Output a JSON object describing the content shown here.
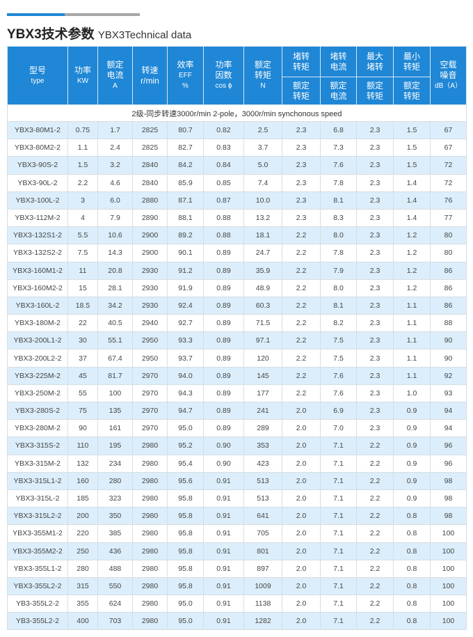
{
  "title": {
    "cn": "YBX3技术参数",
    "en": "YBX3Technical data"
  },
  "header": {
    "type": [
      "型号",
      "type"
    ],
    "power": [
      "功率",
      "KW"
    ],
    "current": [
      "额定",
      "电流",
      "A"
    ],
    "speed": [
      "转速",
      "r/min"
    ],
    "eff": [
      "效率",
      "EFF",
      "%"
    ],
    "pf": [
      "功率",
      "因数",
      "cos ϕ"
    ],
    "torque": [
      "额定",
      "转矩",
      "N"
    ],
    "lrt": [
      "堵转",
      "转矩"
    ],
    "lrc": [
      "堵转",
      "电流"
    ],
    "maxt": [
      "最大",
      "堵转"
    ],
    "mint": [
      "最小",
      "转矩"
    ],
    "lrt2": [
      "额定",
      "转矩"
    ],
    "lrc2": [
      "额定",
      "电流"
    ],
    "maxt2": [
      "额定",
      "转矩"
    ],
    "mint2": [
      "额定",
      "转矩"
    ],
    "noise": [
      "空载",
      "噪音",
      "dB（A）"
    ]
  },
  "subtitle": "2级-同步转速3000r/min 2-pole，3000r/min synchonous speed",
  "rows": [
    [
      "YBX3-80M1-2",
      "0.75",
      "1.7",
      "2825",
      "80.7",
      "0.82",
      "2.5",
      "2.3",
      "6.8",
      "2.3",
      "1.5",
      "67"
    ],
    [
      "YBX3-80M2-2",
      "1.1",
      "2.4",
      "2825",
      "82.7",
      "0.83",
      "3.7",
      "2.3",
      "7.3",
      "2.3",
      "1.5",
      "67"
    ],
    [
      "YBX3-90S-2",
      "1.5",
      "3.2",
      "2840",
      "84.2",
      "0.84",
      "5.0",
      "2.3",
      "7.6",
      "2.3",
      "1.5",
      "72"
    ],
    [
      "YBX3-90L-2",
      "2.2",
      "4.6",
      "2840",
      "85.9",
      "0.85",
      "7.4",
      "2.3",
      "7.8",
      "2.3",
      "1.4",
      "72"
    ],
    [
      "YBX3-100L-2",
      "3",
      "6.0",
      "2880",
      "87.1",
      "0.87",
      "10.0",
      "2.3",
      "8.1",
      "2.3",
      "1.4",
      "76"
    ],
    [
      "YBX3-112M-2",
      "4",
      "7.9",
      "2890",
      "88.1",
      "0.88",
      "13.2",
      "2.3",
      "8.3",
      "2.3",
      "1.4",
      "77"
    ],
    [
      "YBX3-132S1-2",
      "5.5",
      "10.6",
      "2900",
      "89.2",
      "0.88",
      "18.1",
      "2.2",
      "8.0",
      "2.3",
      "1.2",
      "80"
    ],
    [
      "YBX3-132S2-2",
      "7.5",
      "14.3",
      "2900",
      "90.1",
      "0.89",
      "24.7",
      "2.2",
      "7.8",
      "2.3",
      "1.2",
      "80"
    ],
    [
      "YBX3-160M1-2",
      "11",
      "20.8",
      "2930",
      "91.2",
      "0.89",
      "35.9",
      "2.2",
      "7.9",
      "2.3",
      "1.2",
      "86"
    ],
    [
      "YBX3-160M2-2",
      "15",
      "28.1",
      "2930",
      "91.9",
      "0.89",
      "48.9",
      "2.2",
      "8.0",
      "2.3",
      "1.2",
      "86"
    ],
    [
      "YBX3-160L-2",
      "18.5",
      "34.2",
      "2930",
      "92.4",
      "0.89",
      "60.3",
      "2.2",
      "8.1",
      "2.3",
      "1.1",
      "86"
    ],
    [
      "YBX3-180M-2",
      "22",
      "40.5",
      "2940",
      "92.7",
      "0.89",
      "71.5",
      "2.2",
      "8.2",
      "2.3",
      "1.1",
      "88"
    ],
    [
      "YBX3-200L1-2",
      "30",
      "55.1",
      "2950",
      "93.3",
      "0.89",
      "97.1",
      "2.2",
      "7.5",
      "2.3",
      "1.1",
      "90"
    ],
    [
      "YBX3-200L2-2",
      "37",
      "67.4",
      "2950",
      "93.7",
      "0.89",
      "120",
      "2.2",
      "7.5",
      "2.3",
      "1.1",
      "90"
    ],
    [
      "YBX3-225M-2",
      "45",
      "81.7",
      "2970",
      "94.0",
      "0.89",
      "145",
      "2.2",
      "7.6",
      "2.3",
      "1.1",
      "92"
    ],
    [
      "YBX3-250M-2",
      "55",
      "100",
      "2970",
      "94.3",
      "0.89",
      "177",
      "2.2",
      "7.6",
      "2.3",
      "1.0",
      "93"
    ],
    [
      "YBX3-280S-2",
      "75",
      "135",
      "2970",
      "94.7",
      "0.89",
      "241",
      "2.0",
      "6.9",
      "2.3",
      "0.9",
      "94"
    ],
    [
      "YBX3-280M-2",
      "90",
      "161",
      "2970",
      "95.0",
      "0.89",
      "289",
      "2.0",
      "7.0",
      "2.3",
      "0.9",
      "94"
    ],
    [
      "YBX3-315S-2",
      "110",
      "195",
      "2980",
      "95.2",
      "0.90",
      "353",
      "2.0",
      "7.1",
      "2.2",
      "0.9",
      "96"
    ],
    [
      "YBX3-315M-2",
      "132",
      "234",
      "2980",
      "95.4",
      "0.90",
      "423",
      "2.0",
      "7.1",
      "2.2",
      "0.9",
      "96"
    ],
    [
      "YBX3-315L1-2",
      "160",
      "280",
      "2980",
      "95.6",
      "0.91",
      "513",
      "2.0",
      "7.1",
      "2.2",
      "0.9",
      "98"
    ],
    [
      "YBX3-315L-2",
      "185",
      "323",
      "2980",
      "95.8",
      "0.91",
      "513",
      "2.0",
      "7.1",
      "2.2",
      "0.9",
      "98"
    ],
    [
      "YBX3-315L2-2",
      "200",
      "350",
      "2980",
      "95.8",
      "0.91",
      "641",
      "2.0",
      "7.1",
      "2.2",
      "0.8",
      "98"
    ],
    [
      "YBX3-355M1-2",
      "220",
      "385",
      "2980",
      "95.8",
      "0.91",
      "705",
      "2.0",
      "7.1",
      "2.2",
      "0.8",
      "100"
    ],
    [
      "YBX3-355M2-2",
      "250",
      "436",
      "2980",
      "95.8",
      "0.91",
      "801",
      "2.0",
      "7.1",
      "2.2",
      "0.8",
      "100"
    ],
    [
      "YBX3-355L1-2",
      "280",
      "488",
      "2980",
      "95.8",
      "0.91",
      "897",
      "2.0",
      "7.1",
      "2.2",
      "0.8",
      "100"
    ],
    [
      "YBX3-355L2-2",
      "315",
      "550",
      "2980",
      "95.8",
      "0.91",
      "1009",
      "2.0",
      "7.1",
      "2.2",
      "0.8",
      "100"
    ],
    [
      "YB3-355L2-2",
      "355",
      "624",
      "2980",
      "95.0",
      "0.91",
      "1138",
      "2.0",
      "7.1",
      "2.2",
      "0.8",
      "100"
    ],
    [
      "YB3-355L2-2",
      "400",
      "703",
      "2980",
      "95.0",
      "0.91",
      "1282",
      "2.0",
      "7.1",
      "2.2",
      "0.8",
      "100"
    ]
  ]
}
